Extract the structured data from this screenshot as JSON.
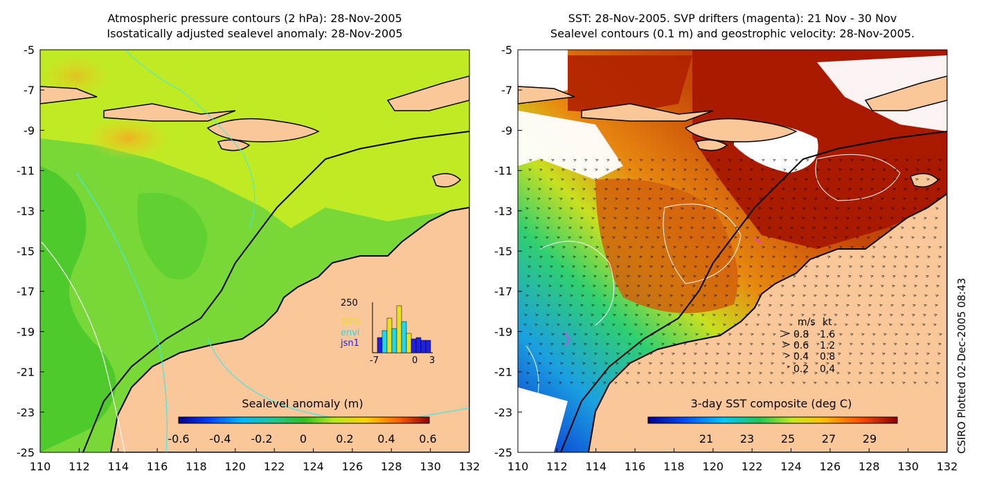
{
  "left": {
    "title_line1": "Atmospheric pressure contours (2 hPa): 28-Nov-2005",
    "title_line2": "Isostatically adjusted sealevel anomaly: 28-Nov-2005",
    "x_ticks": [
      "110",
      "112",
      "114",
      "116",
      "118",
      "120",
      "122",
      "124",
      "126",
      "128",
      "130",
      "132"
    ],
    "y_ticks": [
      "-5",
      "-7",
      "-9",
      "-11",
      "-13",
      "-15",
      "-17",
      "-19",
      "-21",
      "-23",
      "-25"
    ],
    "colorbar_title": "Sealevel anomaly (m)",
    "colorbar_ticks": [
      "-0.6",
      "-0.4",
      "-0.2",
      "0",
      "0.2",
      "0.4",
      "0.6"
    ],
    "inset": {
      "y_max_label": "250",
      "x_ticks": [
        "-7",
        "0",
        "3"
      ],
      "legend": [
        {
          "label": "GFO",
          "color": "#e8e020"
        },
        {
          "label": "envi",
          "color": "#20d8e8"
        },
        {
          "label": "jsn1",
          "color": "#2020e0"
        }
      ]
    }
  },
  "right": {
    "title_line1": "SST: 28-Nov-2005. SVP drifters (magenta): 21 Nov - 30 Nov",
    "title_line2": "Sealevel contours (0.1 m) and geostrophic velocity: 28-Nov-2005.",
    "x_ticks": [
      "110",
      "112",
      "114",
      "116",
      "118",
      "120",
      "122",
      "124",
      "126",
      "128",
      "130",
      "132"
    ],
    "y_ticks": [
      "-5",
      "-7",
      "-9",
      "-11",
      "-13",
      "-15",
      "-17",
      "-19",
      "-21",
      "-23",
      "-25"
    ],
    "colorbar_title": "3-day SST composite (deg C)",
    "colorbar_ticks": [
      "21",
      "23",
      "25",
      "27",
      "29"
    ],
    "velocity_key": {
      "header_ms": "m/s",
      "header_kt": "kt",
      "rows": [
        {
          "ms": "0.8",
          "kt": "1.6"
        },
        {
          "ms": "0.6",
          "kt": "1.2"
        },
        {
          "ms": "0.4",
          "kt": "0.8"
        },
        {
          "ms": "0.2",
          "kt": "0.4"
        }
      ]
    }
  },
  "footer_vertical": "CSIRO Plotted 02-Dec-2005 08:43",
  "colors": {
    "land": "#f9c79a",
    "ocean_green": "#7fd93a",
    "ocean_yellowgreen": "#c8ee20",
    "sst_red": "#a31a00",
    "sst_orange": "#d9620f",
    "sst_blue": "#1a3fd0"
  }
}
